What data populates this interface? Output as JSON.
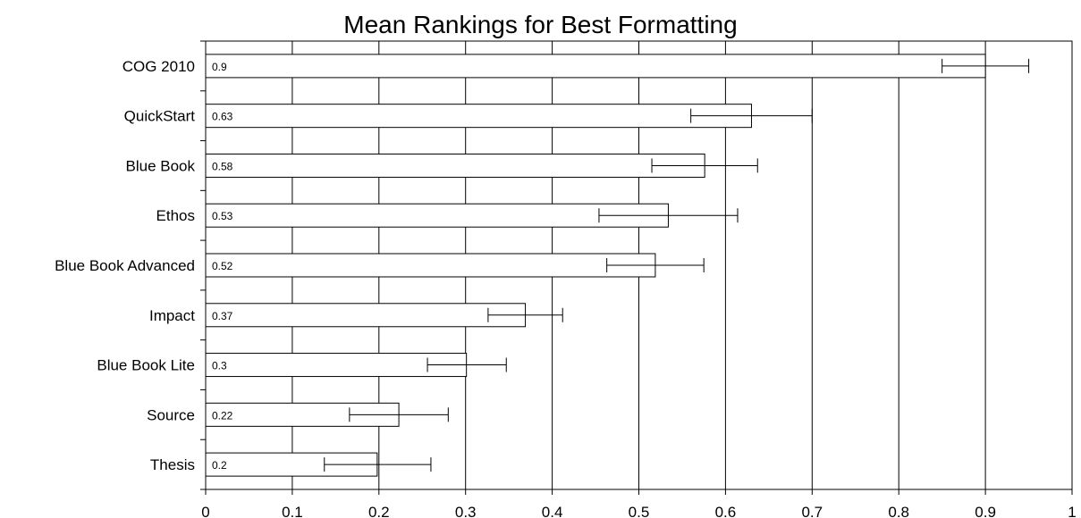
{
  "chart_data": {
    "type": "bar",
    "orientation": "horizontal",
    "title": "Mean Rankings for Best Formatting",
    "xlabel": "",
    "ylabel": "",
    "categories": [
      "COG 2010",
      "QuickStart",
      "Blue Book",
      "Ethos",
      "Blue Book Advanced",
      "Impact",
      "Blue Book Lite",
      "Source",
      "Thesis"
    ],
    "values": [
      0.9,
      0.63,
      0.576,
      0.534,
      0.519,
      0.369,
      0.301,
      0.223,
      0.198
    ],
    "data_labels": [
      "0.9",
      "0.63",
      "0.58",
      "0.53",
      "0.52",
      "0.37",
      "0.3",
      "0.22",
      "0.2"
    ],
    "error_low": [
      0.85,
      0.56,
      0.515,
      0.454,
      0.463,
      0.326,
      0.256,
      0.166,
      0.137
    ],
    "error_high": [
      0.95,
      0.7,
      0.637,
      0.614,
      0.575,
      0.412,
      0.347,
      0.28,
      0.26
    ],
    "xlim": [
      0,
      1
    ],
    "xticks": [
      0,
      0.1,
      0.2,
      0.3,
      0.4,
      0.5,
      0.6,
      0.7,
      0.8,
      0.9,
      1
    ],
    "xtick_labels": [
      "0",
      "0.1",
      "0.2",
      "0.3",
      "0.4",
      "0.5",
      "0.6",
      "0.7",
      "0.8",
      "0.9",
      "1"
    ],
    "grid": "vertical",
    "legend": "none",
    "colors": {
      "bar_fill": "#ffffff",
      "bar_stroke": "#000000",
      "grid": "#000000"
    }
  }
}
